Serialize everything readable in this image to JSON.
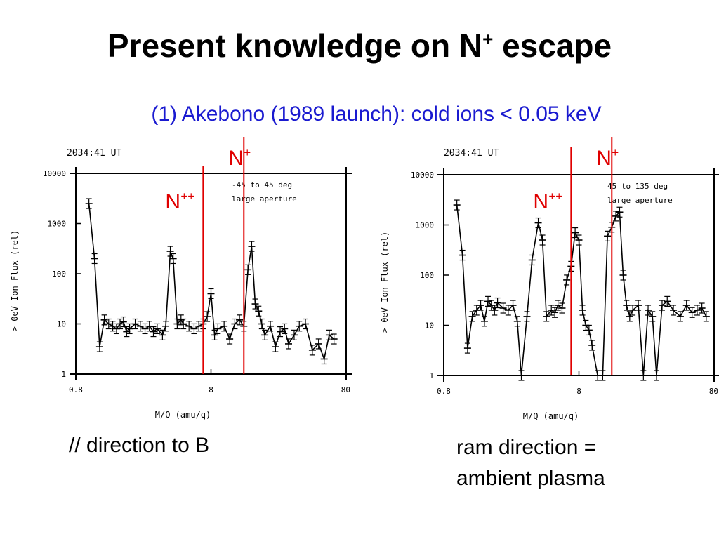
{
  "slide": {
    "title_main": "Present knowledge on N",
    "title_sup": "+",
    "title_end": " escape",
    "subtitle": "(1) Akebono (1989 launch): cold ions < 0.05 keV",
    "caption_left": "// direction to B",
    "caption_right_line1": "ram direction =",
    "caption_right_line2": "ambient plasma"
  },
  "chart_data": [
    {
      "type": "line",
      "header": "2034:41 UT",
      "annotation_line1": "-45 to 45 deg",
      "annotation_line2": "large aperture",
      "xlabel": "M/Q (amu/q)",
      "ylabel": "> 0eV Ion Flux (rel)",
      "xscale": "log",
      "yscale": "log",
      "xlim": [
        0.8,
        80
      ],
      "ylim": [
        1,
        10000
      ],
      "x_ticks": [
        "0.8",
        "8",
        "80"
      ],
      "y_ticks": [
        "1",
        "10",
        "100",
        "1000",
        "10000"
      ],
      "markers": [
        {
          "label": "N",
          "charge": "++",
          "x": 7
        },
        {
          "label": "N",
          "charge": "+",
          "x": 14
        }
      ],
      "series": [
        {
          "x": [
            1.0,
            1.1,
            1.2,
            1.3,
            1.4,
            1.5,
            1.6,
            1.7,
            1.8,
            1.9,
            2.0,
            2.2,
            2.4,
            2.6,
            2.8,
            3.0,
            3.2,
            3.5,
            3.7,
            4.0,
            4.2,
            4.5,
            4.8,
            5.0,
            5.5,
            6.0,
            6.5,
            7.0,
            7.5,
            8.0,
            8.5,
            9.0,
            10.0,
            11.0,
            12.0,
            13.0,
            14.0,
            15.0,
            16.0,
            17.0,
            18.0,
            19.0,
            20.0,
            22.0,
            24.0,
            26.0,
            28.0,
            30.0,
            33.0,
            36.0,
            40.0,
            45.0,
            50.0,
            55.0,
            60.0,
            65.0
          ],
          "y": [
            2500,
            200,
            3.5,
            12,
            10,
            9,
            8,
            10,
            11,
            7,
            8,
            10,
            9,
            8,
            9,
            7,
            8,
            6,
            9,
            280,
            200,
            10,
            12,
            10,
            9,
            8,
            9,
            10,
            14,
            40,
            6,
            8,
            9,
            5,
            10,
            12,
            9,
            120,
            350,
            25,
            18,
            10,
            6,
            9,
            3.5,
            7,
            8,
            4,
            6,
            9,
            10,
            3,
            4,
            2,
            6,
            5
          ]
        }
      ]
    },
    {
      "type": "line",
      "header": "2034:41 UT",
      "annotation_line1": "45 to 135 deg",
      "annotation_line2": "large aperture",
      "xlabel": "M/Q (amu/q)",
      "ylabel": "> 0eV Ion Flux (rel)",
      "xscale": "log",
      "yscale": "log",
      "xlim": [
        0.8,
        80
      ],
      "ylim": [
        1,
        10000
      ],
      "x_ticks": [
        "0.8",
        "8",
        "80"
      ],
      "y_ticks": [
        "1",
        "10",
        "100",
        "1000",
        "10000"
      ],
      "markers": [
        {
          "label": "N",
          "charge": "++",
          "x": 7
        },
        {
          "label": "N",
          "charge": "+",
          "x": 14
        }
      ],
      "series": [
        {
          "x": [
            1.0,
            1.1,
            1.2,
            1.3,
            1.4,
            1.5,
            1.6,
            1.7,
            1.8,
            1.9,
            2.0,
            2.2,
            2.4,
            2.6,
            2.8,
            3.0,
            3.3,
            3.6,
            4.0,
            4.3,
            4.6,
            5.0,
            5.3,
            5.6,
            6.0,
            6.5,
            7.0,
            7.5,
            8.0,
            8.5,
            9.0,
            9.5,
            10.0,
            11.0,
            12.0,
            13.0,
            14.0,
            15.0,
            16.0,
            17.0,
            18.0,
            19.0,
            20.0,
            22.0,
            24.0,
            26.0,
            28.0,
            30.0,
            33.0,
            36.0,
            40.0,
            45.0,
            50.0,
            55.0,
            60.0,
            65.0,
            70.0
          ],
          "y": [
            2500,
            250,
            3.5,
            15,
            20,
            25,
            12,
            30,
            25,
            20,
            28,
            22,
            20,
            25,
            12,
            1,
            15,
            200,
            1100,
            500,
            15,
            20,
            18,
            25,
            22,
            80,
            150,
            700,
            500,
            20,
            10,
            8,
            4,
            1,
            1,
            600,
            900,
            1500,
            1800,
            100,
            25,
            15,
            20,
            25,
            1,
            20,
            15,
            1,
            25,
            30,
            20,
            15,
            25,
            18,
            20,
            22,
            15
          ]
        }
      ]
    }
  ]
}
